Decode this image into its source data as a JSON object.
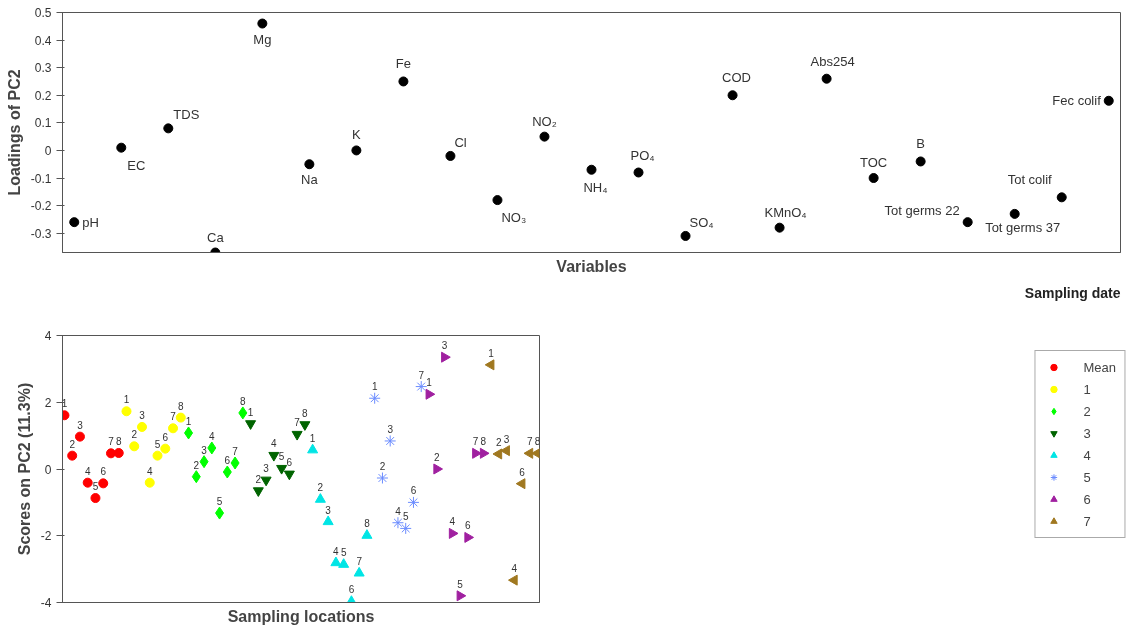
{
  "chart_data": [
    {
      "type": "scatter",
      "xlabel": "Variables",
      "ylabel": "Loadings of PC2",
      "annotations": [
        "Sampling date"
      ],
      "categories": [
        "pH",
        "EC",
        "TDS",
        "Ca",
        "Mg",
        "Na",
        "K",
        "Fe",
        "Cl",
        "NO₃",
        "NO₂",
        "NH₄",
        "PO₄",
        "SO₄",
        "COD",
        "KMnO₄",
        "Abs254",
        "TOC",
        "B",
        "Tot germs 22",
        "Tot germs 37",
        "Tot colif",
        "Fec colif"
      ],
      "values": [
        -0.26,
        0.01,
        0.08,
        -0.37,
        0.46,
        -0.05,
        0.0,
        0.25,
        -0.02,
        -0.18,
        0.05,
        -0.07,
        -0.08,
        -0.31,
        0.2,
        -0.28,
        0.26,
        -0.1,
        -0.04,
        -0.26,
        -0.23,
        -0.17,
        0.18
      ],
      "color": "#000000",
      "marker": "circle",
      "ylim": [
        -0.37,
        0.5
      ],
      "yticks": [
        -0.3,
        -0.2,
        -0.1,
        0,
        0.1,
        0.2,
        0.3,
        0.4,
        0.5
      ],
      "tick_labels": "y",
      "grid": false
    },
    {
      "type": "scatter",
      "xlabel": "Sampling locations",
      "ylabel": "Scores on PC2 (11.3%)",
      "legend": "right",
      "grid": false,
      "tick_labels": "y",
      "ylim": [
        -4,
        4
      ],
      "yticks": [
        -4,
        -2,
        0,
        2,
        4
      ],
      "categories": [
        "1",
        "2",
        "3",
        "4",
        "5",
        "6",
        "7",
        "8",
        "1",
        "2",
        "3",
        "4",
        "5",
        "6",
        "7",
        "8",
        "1",
        "2",
        "3",
        "4",
        "5",
        "6",
        "7",
        "8",
        "1",
        "2",
        "3",
        "4",
        "5",
        "6",
        "7",
        "8",
        "1",
        "2",
        "3",
        "4",
        "5",
        "6",
        "7",
        "8",
        "1",
        "2",
        "3",
        "4",
        "5",
        "6",
        "7",
        "1",
        "2",
        "3",
        "4",
        "5",
        "6",
        "7",
        "8",
        "1",
        "2",
        "3",
        "4",
        "6",
        "7",
        "8"
      ],
      "series": [
        {
          "name": "Mean",
          "color": "#ff0000",
          "marker": "circle",
          "values": [
            1.61,
            0.4,
            0.97,
            -0.41,
            -0.87,
            -0.43,
            0.47,
            0.48,
            null,
            null,
            null,
            null,
            null,
            null,
            null,
            null,
            null,
            null,
            null,
            null,
            null,
            null,
            null,
            null,
            null,
            null,
            null,
            null,
            null,
            null,
            null,
            null,
            null,
            null,
            null,
            null,
            null,
            null,
            null,
            null,
            null,
            null,
            null,
            null,
            null,
            null,
            null,
            null,
            null,
            null,
            null,
            null,
            null,
            null,
            null,
            null,
            null,
            null,
            null,
            null,
            null,
            null
          ]
        },
        {
          "name": "1",
          "color": "#ffff00",
          "marker": "circle",
          "values": [
            null,
            null,
            null,
            null,
            null,
            null,
            null,
            null,
            1.73,
            0.68,
            1.26,
            -0.41,
            0.4,
            0.61,
            1.22,
            1.54,
            null,
            null,
            null,
            null,
            null,
            null,
            null,
            null,
            null,
            null,
            null,
            null,
            null,
            null,
            null,
            null,
            null,
            null,
            null,
            null,
            null,
            null,
            null,
            null,
            null,
            null,
            null,
            null,
            null,
            null,
            null,
            null,
            null,
            null,
            null,
            null,
            null,
            null,
            null,
            null,
            null,
            null,
            null,
            null,
            null,
            null
          ]
        },
        {
          "name": "2",
          "color": "#00ff00",
          "marker": "diamond",
          "values": [
            null,
            null,
            null,
            null,
            null,
            null,
            null,
            null,
            null,
            null,
            null,
            null,
            null,
            null,
            null,
            null,
            1.08,
            -0.23,
            0.22,
            0.63,
            -1.32,
            -0.09,
            0.18,
            1.68,
            null,
            null,
            null,
            null,
            null,
            null,
            null,
            null,
            null,
            null,
            null,
            null,
            null,
            null,
            null,
            null,
            null,
            null,
            null,
            null,
            null,
            null,
            null,
            null,
            null,
            null,
            null,
            null,
            null,
            null,
            null,
            null,
            null,
            null,
            null,
            null,
            null,
            null
          ]
        },
        {
          "name": "3",
          "color": "#006400",
          "marker": "triangle_down",
          "values": [
            null,
            null,
            null,
            null,
            null,
            null,
            null,
            null,
            null,
            null,
            null,
            null,
            null,
            null,
            null,
            null,
            null,
            null,
            null,
            null,
            null,
            null,
            null,
            null,
            1.36,
            -0.65,
            -0.33,
            0.41,
            0.02,
            -0.15,
            1.04,
            1.33,
            null,
            null,
            null,
            null,
            null,
            null,
            null,
            null,
            null,
            null,
            null,
            null,
            null,
            null,
            null,
            null,
            null,
            null,
            null,
            null,
            null,
            null,
            null,
            null,
            null,
            null,
            null,
            null,
            null,
            null
          ]
        },
        {
          "name": "4",
          "color": "#00e5e5",
          "marker": "triangle",
          "values": [
            null,
            null,
            null,
            null,
            null,
            null,
            null,
            null,
            null,
            null,
            null,
            null,
            null,
            null,
            null,
            null,
            null,
            null,
            null,
            null,
            null,
            null,
            null,
            null,
            null,
            null,
            null,
            null,
            null,
            null,
            null,
            null,
            0.57,
            -0.91,
            -1.58,
            -2.81,
            -2.86,
            -3.97,
            -3.12,
            -1.99,
            null,
            null,
            null,
            null,
            null,
            null,
            null,
            null,
            null,
            null,
            null,
            null,
            null,
            null,
            null,
            null,
            null,
            null,
            null,
            null,
            null,
            null
          ]
        },
        {
          "name": "5",
          "color": "#6b8cff",
          "marker": "cross",
          "values": [
            null,
            null,
            null,
            null,
            null,
            null,
            null,
            null,
            null,
            null,
            null,
            null,
            null,
            null,
            null,
            null,
            null,
            null,
            null,
            null,
            null,
            null,
            null,
            null,
            null,
            null,
            null,
            null,
            null,
            null,
            null,
            null,
            null,
            null,
            null,
            null,
            null,
            null,
            null,
            null,
            2.12,
            -0.27,
            0.84,
            -1.61,
            -1.78,
            -1.0,
            2.47,
            null,
            null,
            null,
            null,
            null,
            null,
            null,
            null,
            null,
            null,
            null,
            null,
            null,
            null,
            null
          ]
        },
        {
          "name": "6",
          "color": "#a020a0",
          "marker": "triangle_right",
          "values": [
            null,
            null,
            null,
            null,
            null,
            null,
            null,
            null,
            null,
            null,
            null,
            null,
            null,
            null,
            null,
            null,
            null,
            null,
            null,
            null,
            null,
            null,
            null,
            null,
            null,
            null,
            null,
            null,
            null,
            null,
            null,
            null,
            null,
            null,
            null,
            null,
            null,
            null,
            null,
            null,
            null,
            null,
            null,
            null,
            null,
            null,
            null,
            2.24,
            0.0,
            3.35,
            -1.93,
            -3.8,
            -2.05,
            0.47,
            0.47,
            null,
            null,
            null,
            null,
            null,
            null,
            null
          ]
        },
        {
          "name": "7",
          "color": "#a07820",
          "marker": "triangle_left",
          "values": [
            null,
            null,
            null,
            null,
            null,
            null,
            null,
            null,
            null,
            null,
            null,
            null,
            null,
            null,
            null,
            null,
            null,
            null,
            null,
            null,
            null,
            null,
            null,
            null,
            null,
            null,
            null,
            null,
            null,
            null,
            null,
            null,
            null,
            null,
            null,
            null,
            null,
            null,
            null,
            null,
            null,
            null,
            null,
            null,
            null,
            null,
            null,
            null,
            null,
            null,
            null,
            null,
            null,
            null,
            null,
            3.12,
            0.45,
            0.55,
            -3.33,
            -0.44,
            0.47,
            0.47
          ]
        }
      ]
    }
  ]
}
